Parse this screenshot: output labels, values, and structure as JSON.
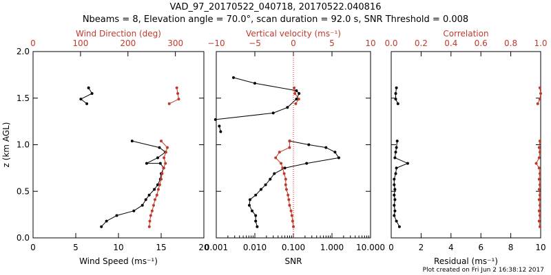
{
  "header": {
    "title_line1": "VAD_97_20170522_040718, 20170522.040816",
    "title_line2": "Nbeams = 8, Elevation angle = 70.0°, scan duration = 92.0 s, SNR Threshold = 0.008"
  },
  "footer": {
    "text": "Plot created on Fri Jun  2 16:38:12 2017"
  },
  "colors": {
    "black": "#000000",
    "red": "#c0392b",
    "ref_line": "#ff0000"
  },
  "y_axis": {
    "label": "z (km AGL)",
    "range": [
      0.0,
      2.0
    ],
    "ticks": [
      "0.0",
      "0.5",
      "1.0",
      "1.5",
      "2.0"
    ]
  },
  "chart_data": [
    {
      "type": "line",
      "title": "",
      "xlabel": "Wind Speed (ms⁻¹)",
      "x2label": "Wind Direction (deg)",
      "xlim": [
        0,
        20
      ],
      "x2lim": [
        0,
        360
      ],
      "x_ticks": [
        "0",
        "5",
        "10",
        "15",
        "20"
      ],
      "x2_ticks": [
        "0",
        "100",
        "200",
        "300"
      ],
      "series": [
        {
          "name": "Wind Speed",
          "axis": "bottom",
          "color": "#000000",
          "segments": [
            [
              [
                8.0,
                0.12
              ],
              [
                8.6,
                0.18
              ],
              [
                9.8,
                0.24
              ],
              [
                11.8,
                0.29
              ],
              [
                12.8,
                0.35
              ],
              [
                13.2,
                0.41
              ],
              [
                13.6,
                0.46
              ],
              [
                14.2,
                0.52
              ],
              [
                14.6,
                0.57
              ],
              [
                14.9,
                0.63
              ],
              [
                15.0,
                0.69
              ],
              [
                15.3,
                0.75
              ],
              [
                14.9,
                0.8
              ],
              [
                13.3,
                0.8
              ],
              [
                14.6,
                0.86
              ],
              [
                15.5,
                0.92
              ],
              [
                14.8,
                0.97
              ],
              [
                11.6,
                1.04
              ]
            ],
            [
              [
                6.3,
                1.44
              ],
              [
                5.6,
                1.49
              ],
              [
                6.9,
                1.55
              ],
              [
                6.5,
                1.61
              ]
            ]
          ]
        },
        {
          "name": "Wind Direction",
          "axis": "top",
          "color": "#c0392b",
          "segments": [
            [
              [
                245,
                0.12
              ],
              [
                246,
                0.18
              ],
              [
                248,
                0.24
              ],
              [
                251,
                0.29
              ],
              [
                254,
                0.35
              ],
              [
                257,
                0.41
              ],
              [
                261,
                0.46
              ],
              [
                264,
                0.52
              ],
              [
                267,
                0.57
              ],
              [
                270,
                0.63
              ],
              [
                272,
                0.69
              ],
              [
                275,
                0.75
              ],
              [
                279,
                0.8
              ],
              [
                276,
                0.86
              ],
              [
                280,
                0.92
              ],
              [
                283,
                0.97
              ],
              [
                270,
                1.04
              ]
            ],
            [
              [
                287,
                1.44
              ],
              [
                307,
                1.49
              ],
              [
                305,
                1.55
              ],
              [
                303,
                1.61
              ]
            ]
          ]
        }
      ]
    },
    {
      "type": "line",
      "title": "",
      "xlabel": "SNR",
      "x2label": "Vertical velocity (ms⁻¹)",
      "xscale": "log",
      "xlim": [
        0.001,
        10.0
      ],
      "x2lim": [
        -10,
        10
      ],
      "x_ticks": [
        "0.001",
        "0.010",
        "0.100",
        "1.000",
        "10.000"
      ],
      "x2_ticks": [
        "−10",
        "−5",
        "0",
        "5",
        "10"
      ],
      "reference_line": {
        "axis": "top",
        "value": 0,
        "style": "dotted"
      },
      "series": [
        {
          "name": "SNR",
          "axis": "bottom",
          "color": "#000000",
          "segments": [
            [
              [
                0.0115,
                0.12
              ],
              [
                0.0105,
                0.18
              ],
              [
                0.0105,
                0.24
              ],
              [
                0.0085,
                0.29
              ],
              [
                0.0072,
                0.35
              ],
              [
                0.0075,
                0.41
              ],
              [
                0.0105,
                0.46
              ],
              [
                0.0145,
                0.52
              ],
              [
                0.019,
                0.57
              ],
              [
                0.025,
                0.63
              ],
              [
                0.032,
                0.69
              ],
              [
                0.06,
                0.75
              ],
              [
                0.22,
                0.8
              ],
              [
                1.5,
                0.86
              ],
              [
                1.2,
                0.92
              ],
              [
                0.7,
                0.97
              ],
              [
                0.25,
                1.0
              ],
              [
                0.08,
                1.04
              ]
            ],
            [
              [
                0.0013,
                1.14
              ],
              [
                0.0012,
                1.2
              ]
            ],
            [
              [
                0.00095,
                1.27
              ],
              [
                0.03,
                1.34
              ],
              [
                0.07,
                1.4
              ],
              [
                0.12,
                1.49
              ],
              [
                0.14,
                1.55
              ],
              [
                0.12,
                1.58
              ],
              [
                0.01,
                1.66
              ],
              [
                0.0028,
                1.72
              ]
            ]
          ]
        },
        {
          "name": "Vertical velocity",
          "axis": "top",
          "color": "#c0392b",
          "segments": [
            [
              [
                0.0,
                0.12
              ],
              [
                -0.1,
                0.18
              ],
              [
                -0.2,
                0.24
              ],
              [
                -0.3,
                0.29
              ],
              [
                -0.5,
                0.35
              ],
              [
                -0.6,
                0.41
              ],
              [
                -0.7,
                0.46
              ],
              [
                -0.9,
                0.52
              ],
              [
                -1.0,
                0.57
              ],
              [
                -1.0,
                0.63
              ],
              [
                -1.2,
                0.69
              ],
              [
                -1.4,
                0.75
              ],
              [
                -1.6,
                0.8
              ],
              [
                -2.3,
                0.86
              ],
              [
                -1.8,
                0.92
              ],
              [
                -0.5,
                0.97
              ],
              [
                -0.5,
                1.04
              ]
            ],
            [
              [
                0.3,
                1.44
              ],
              [
                0.7,
                1.49
              ],
              [
                0.2,
                1.55
              ],
              [
                0.1,
                1.61
              ]
            ]
          ]
        }
      ]
    },
    {
      "type": "line",
      "title": "",
      "xlabel": "Residual (ms⁻¹)",
      "x2label": "Correlation",
      "xlim": [
        0,
        10
      ],
      "x2lim": [
        0.0,
        1.0
      ],
      "x_ticks": [
        "0",
        "2",
        "4",
        "6",
        "8",
        "10"
      ],
      "x2_ticks": [
        "0.0",
        "0.2",
        "0.4",
        "0.6",
        "0.8",
        "1.0"
      ],
      "series": [
        {
          "name": "Residual",
          "axis": "bottom",
          "color": "#000000",
          "segments": [
            [
              [
                0.55,
                0.12
              ],
              [
                0.35,
                0.18
              ],
              [
                0.2,
                0.24
              ],
              [
                0.25,
                0.29
              ],
              [
                0.2,
                0.35
              ],
              [
                0.25,
                0.41
              ],
              [
                0.2,
                0.46
              ],
              [
                0.25,
                0.52
              ],
              [
                0.2,
                0.57
              ],
              [
                0.2,
                0.63
              ],
              [
                0.3,
                0.69
              ],
              [
                0.35,
                0.75
              ],
              [
                1.1,
                0.8
              ],
              [
                0.25,
                0.86
              ],
              [
                0.3,
                0.92
              ],
              [
                0.35,
                0.97
              ],
              [
                0.4,
                1.04
              ]
            ],
            [
              [
                0.45,
                1.44
              ],
              [
                0.3,
                1.49
              ],
              [
                0.3,
                1.55
              ],
              [
                0.35,
                1.61
              ]
            ]
          ]
        },
        {
          "name": "Correlation",
          "axis": "top",
          "color": "#c0392b",
          "segments": [
            [
              [
                0.995,
                0.12
              ],
              [
                0.99,
                0.18
              ],
              [
                0.995,
                0.24
              ],
              [
                0.99,
                0.29
              ],
              [
                0.995,
                0.35
              ],
              [
                0.99,
                0.41
              ],
              [
                0.995,
                0.46
              ],
              [
                0.99,
                0.52
              ],
              [
                0.995,
                0.57
              ],
              [
                0.99,
                0.63
              ],
              [
                0.995,
                0.69
              ],
              [
                0.99,
                0.75
              ],
              [
                0.97,
                0.8
              ],
              [
                0.99,
                0.86
              ],
              [
                0.995,
                0.92
              ],
              [
                0.99,
                0.97
              ],
              [
                0.995,
                1.04
              ]
            ],
            [
              [
                0.98,
                1.44
              ],
              [
                0.995,
                1.49
              ],
              [
                1.0,
                1.55
              ],
              [
                0.995,
                1.61
              ]
            ]
          ]
        }
      ]
    }
  ]
}
